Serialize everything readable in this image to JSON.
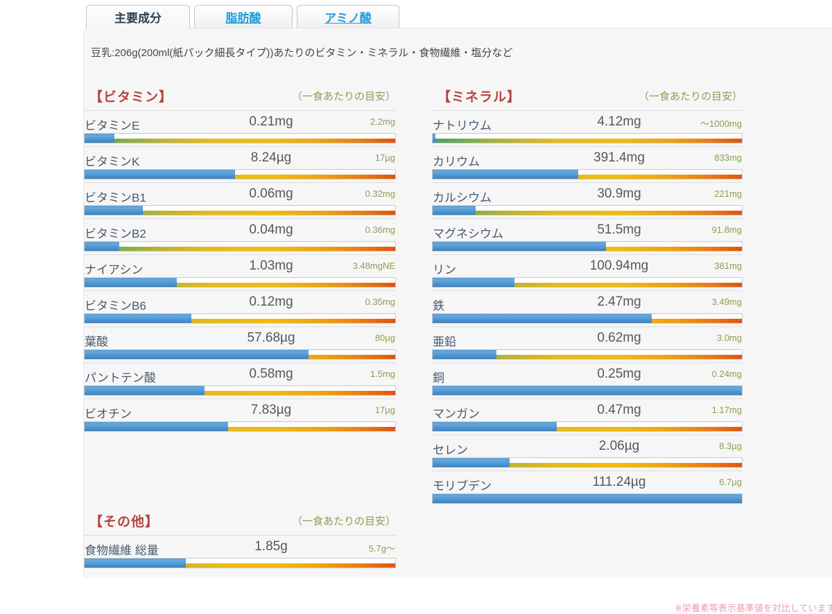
{
  "tabs": [
    {
      "label": "主要成分",
      "active": true
    },
    {
      "label": "脂肪酸",
      "active": false
    },
    {
      "label": "アミノ酸",
      "active": false
    }
  ],
  "subtitle": "豆乳:206g(200ml(紙パック細長タイプ))あたりのビタミン・ミネラル・食物繊維・塩分など",
  "sections": [
    {
      "id": "vitamin",
      "title": "【ビタミン】",
      "aside": "（一食あたりの目安）",
      "rows": [
        {
          "name": "ビタミンE",
          "value": "0.21mg",
          "goal": "2.2mg",
          "pct": 9.5
        },
        {
          "name": "ビタミンK",
          "value": "8.24µg",
          "goal": "17µg",
          "pct": 48.5
        },
        {
          "name": "ビタミンB1",
          "value": "0.06mg",
          "goal": "0.32mg",
          "pct": 18.8
        },
        {
          "name": "ビタミンB2",
          "value": "0.04mg",
          "goal": "0.36mg",
          "pct": 11.1
        },
        {
          "name": "ナイアシン",
          "value": "1.03mg",
          "goal": "3.48mgNE",
          "pct": 29.6
        },
        {
          "name": "ビタミンB6",
          "value": "0.12mg",
          "goal": "0.35mg",
          "pct": 34.3
        },
        {
          "name": "葉酸",
          "value": "57.68µg",
          "goal": "80µg",
          "pct": 72.1
        },
        {
          "name": "パントテン酸",
          "value": "0.58mg",
          "goal": "1.5mg",
          "pct": 38.7
        },
        {
          "name": "ビオチン",
          "value": "7.83µg",
          "goal": "17µg",
          "pct": 46.1
        }
      ]
    },
    {
      "id": "mineral",
      "title": "【ミネラル】",
      "aside": "（一食あたりの目安）",
      "rows": [
        {
          "name": "ナトリウム",
          "value": "4.12mg",
          "goal": "〜1000mg",
          "pct": 1
        },
        {
          "name": "カリウム",
          "value": "391.4mg",
          "goal": "833mg",
          "pct": 47.0
        },
        {
          "name": "カルシウム",
          "value": "30.9mg",
          "goal": "221mg",
          "pct": 14.0
        },
        {
          "name": "マグネシウム",
          "value": "51.5mg",
          "goal": "91.8mg",
          "pct": 56.1
        },
        {
          "name": "リン",
          "value": "100.94mg",
          "goal": "381mg",
          "pct": 26.5
        },
        {
          "name": "鉄",
          "value": "2.47mg",
          "goal": "3.49mg",
          "pct": 70.8
        },
        {
          "name": "亜鉛",
          "value": "0.62mg",
          "goal": "3.0mg",
          "pct": 20.7
        },
        {
          "name": "銅",
          "value": "0.25mg",
          "goal": "0.24mg",
          "pct": 100
        },
        {
          "name": "マンガン",
          "value": "0.47mg",
          "goal": "1.17mg",
          "pct": 40.2
        },
        {
          "name": "セレン",
          "value": "2.06µg",
          "goal": "8.3µg",
          "pct": 24.8
        },
        {
          "name": "モリブデン",
          "value": "111.24µg",
          "goal": "6.7µg",
          "pct": 100
        }
      ]
    },
    {
      "id": "other",
      "title": "【その他】",
      "aside": "（一食あたりの目安）",
      "rows": [
        {
          "name": "食物繊維 総量",
          "value": "1.85g",
          "goal": "5.7g〜",
          "pct": 32.5
        }
      ]
    }
  ],
  "footer_note": "※栄養素等表示基準値を対比しています",
  "colors": {
    "section_title": "#b5443f",
    "goal_text": "#8d9d52",
    "bar_fill_blue": "#4a92cf",
    "bar_scale_green": "#45a173",
    "bar_scale_yellow": "#f1bb10",
    "bar_scale_orange": "#e25210",
    "tab_link_blue": "#1e9cd8"
  }
}
